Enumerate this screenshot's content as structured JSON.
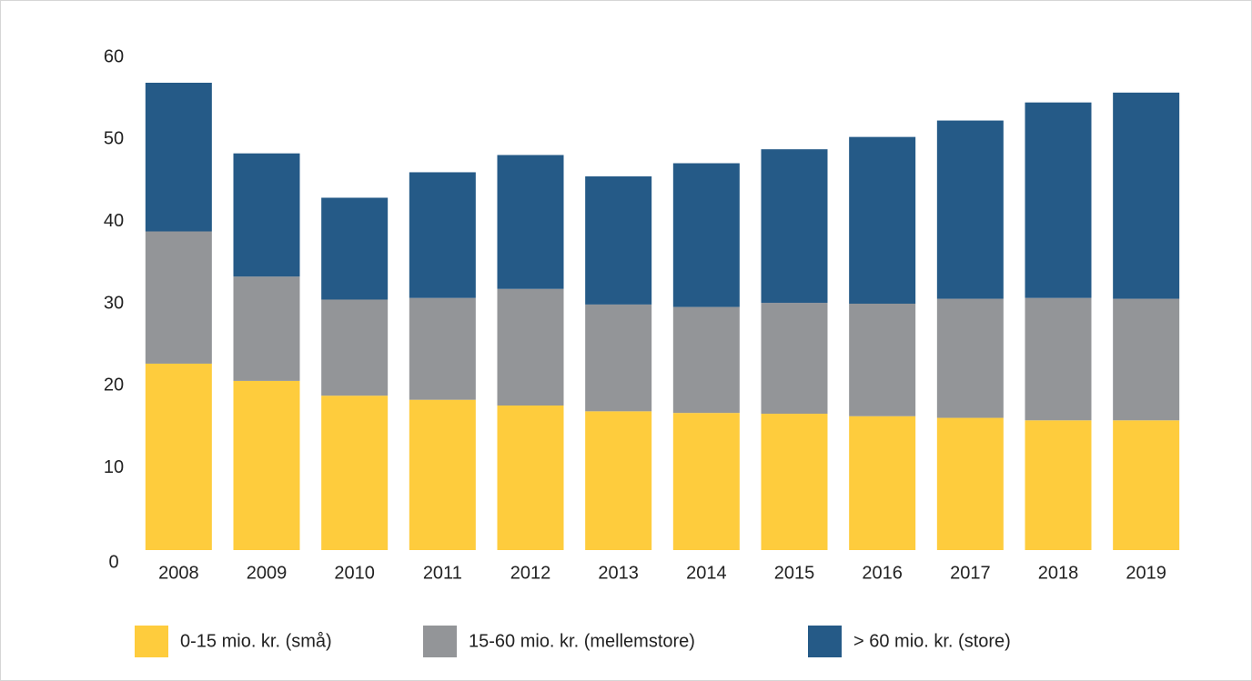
{
  "chart_data": {
    "type": "stacked_bar",
    "categories": [
      "2008",
      "2009",
      "2010",
      "2011",
      "2012",
      "2013",
      "2014",
      "2015",
      "2016",
      "2017",
      "2018",
      "2019"
    ],
    "series": [
      {
        "name": "0-15 mio. kr. (små)",
        "color": "#fecc3d",
        "values": [
          22.7,
          20.6,
          18.8,
          18.3,
          17.6,
          16.9,
          16.7,
          16.6,
          16.3,
          16.1,
          15.8,
          15.8
        ]
      },
      {
        "name": "15-60 mio. kr. (mellemstore)",
        "color": "#939598",
        "values": [
          16.1,
          12.7,
          11.7,
          12.4,
          14.2,
          13.0,
          12.9,
          13.5,
          13.7,
          14.5,
          14.9,
          14.8
        ]
      },
      {
        "name": "> 60 mio. kr. (store)",
        "color": "#255a87",
        "values": [
          18.1,
          15.0,
          12.4,
          15.3,
          16.3,
          15.6,
          17.5,
          18.7,
          20.3,
          21.7,
          23.8,
          25.1
        ]
      }
    ],
    "ylim": [
      0,
      60
    ],
    "yticks": [
      0,
      10,
      20,
      30,
      40,
      50,
      60
    ],
    "grid": false,
    "legend": "bottom"
  }
}
